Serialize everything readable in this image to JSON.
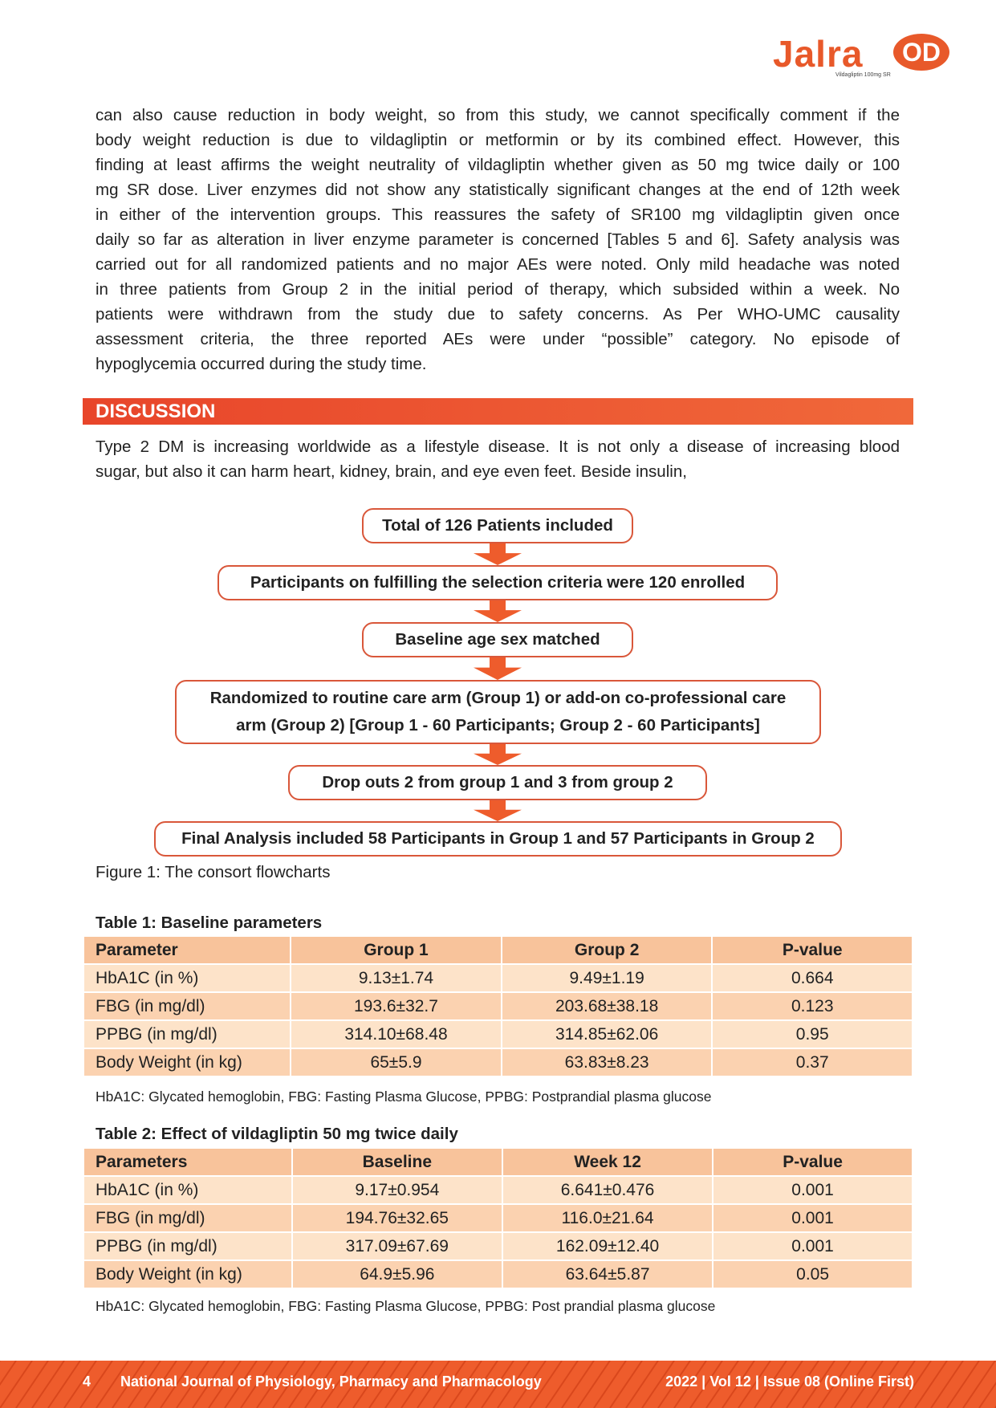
{
  "logo": {
    "brand": "Jalra",
    "mark": "®",
    "suffix": "OD",
    "tagline": "Vildagliptin 100mg SR"
  },
  "results_paragraph": [
    "can also cause reduction in body weight, so from this study, we cannot specifically comment if the",
    "body weight reduction is due to vildagliptin or metformin or by its combined effect. However, this",
    "finding at least affirms the weight neutrality of vildagliptin whether given as 50 mg twice daily or 100",
    "mg SR dose. Liver enzymes did not show any statistically significant changes at the end of 12th week",
    "in either of the intervention groups. This reassures the safety of SR100 mg vildagliptin given once",
    "daily so far as alteration in liver enzyme parameter is concerned [Tables 5 and 6]. Safety analysis was",
    "carried out for all randomized patients and no major AEs were noted. Only mild headache was noted",
    "in three patients from Group 2 in the initial period of therapy, which subsided within a week. No",
    "patients were withdrawn from the study due to safety concerns. As Per WHO-UMC causality",
    "assessment criteria, the three reported AEs were under “possible” category. No episode of",
    "hypoglycemia occurred during the study time."
  ],
  "discussion": {
    "heading": "DISCUSSION",
    "lines": [
      "Type 2 DM is increasing worldwide as a lifestyle disease. It is not only a disease of increasing blood",
      "sugar, but also it can harm heart, kidney, brain, and eye even feet. Beside insulin,"
    ]
  },
  "flowchart": {
    "steps": [
      "Total of 126 Patients included",
      "Participants on fulfilling the selection criteria were 120 enrolled",
      "Baseline age sex matched",
      "Randomized to routine care arm (Group 1) or add-on co-professional care arm (Group 2) [Group 1 - 60 Participants; Group 2 - 60 Participants]",
      "Drop outs 2 from group 1 and 3 from group 2",
      "Final Analysis included 58 Participants in Group 1 and 57 Participants in Group 2"
    ],
    "caption": "Figure 1: The consort flowcharts",
    "border_color": "#d9573a",
    "arrow_color": "#ee5c2c"
  },
  "table1": {
    "title": "Table 1: Baseline parameters",
    "headers": [
      "Parameter",
      "Group 1",
      "Group 2",
      "P-value"
    ],
    "rows": [
      [
        "HbA1C (in %)",
        "9.13±1.74",
        "9.49±1.19",
        "0.664"
      ],
      [
        "FBG (in mg/dl)",
        "193.6±32.7",
        "203.68±38.18",
        "0.123"
      ],
      [
        "PPBG (in mg/dl)",
        "314.10±68.48",
        "314.85±62.06",
        "0.95"
      ],
      [
        "Body Weight (in kg)",
        "65±5.9",
        "63.83±8.23",
        "0.37"
      ]
    ],
    "note": "HbA1C: Glycated hemoglobin, FBG: Fasting Plasma Glucose,    PPBG: Postprandial plasma glucose"
  },
  "table2": {
    "title": "Table 2: Effect of vildagliptin 50 mg twice daily",
    "headers": [
      "Parameters",
      "Baseline",
      "Week 12",
      "P-value"
    ],
    "rows": [
      [
        "HbA1C (in %)",
        "9.17±0.954",
        "6.641±0.476",
        "0.001"
      ],
      [
        "FBG (in mg/dl)",
        "194.76±32.65",
        "116.0±21.64",
        "0.001"
      ],
      [
        "PPBG (in mg/dl)",
        "317.09±67.69",
        "162.09±12.40",
        "0.001"
      ],
      [
        "Body Weight (in kg)",
        "64.9±5.96",
        "63.64±5.87",
        "0.05"
      ]
    ],
    "note": "HbA1C: Glycated hemoglobin, FBG: Fasting Plasma Glucose, PPBG: Post prandial plasma glucose"
  },
  "footer": {
    "page": "4",
    "journal": "National Journal of Physiology, Pharmacy and Pharmacology",
    "issue": "2022 | Vol 12 | Issue 08 (Online First)"
  },
  "colors": {
    "accent": "#ee5c2c",
    "header_cell": "#f8c39b",
    "row_light": "#fde3c9",
    "row_dark": "#fbd2b0"
  }
}
